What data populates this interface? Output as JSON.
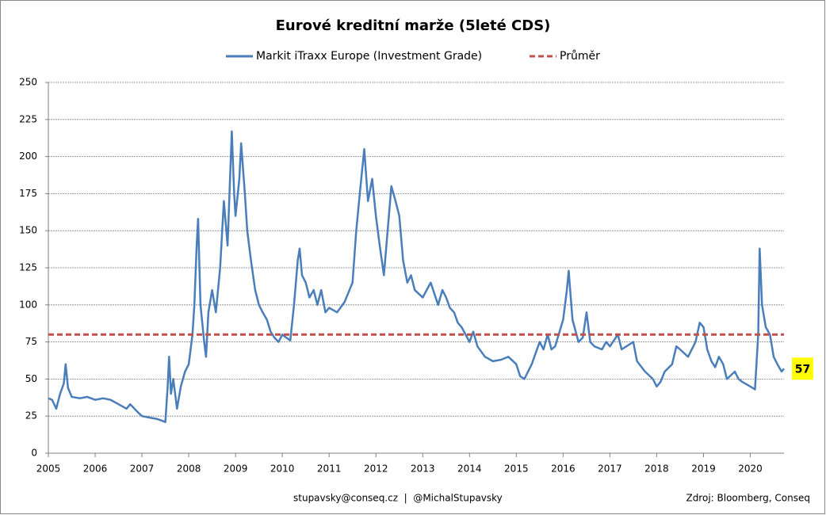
{
  "chart_data": {
    "type": "line",
    "title": "Eurové kreditní marže (5leté CDS)",
    "xlim": [
      2005,
      2020.72
    ],
    "xticks": [
      2005,
      2006,
      2007,
      2008,
      2009,
      2010,
      2011,
      2012,
      2013,
      2014,
      2015,
      2016,
      2017,
      2018,
      2019,
      2020
    ],
    "ylim": [
      0,
      250
    ],
    "yticks": [
      0,
      25,
      50,
      75,
      100,
      125,
      150,
      175,
      200,
      225,
      250
    ],
    "grid": true,
    "legend": "top",
    "series": [
      {
        "name": "Markit iTraxx Europe (Investment Grade)",
        "color": "#4a7ebb",
        "x": [
          2005.0,
          2005.08,
          2005.17,
          2005.25,
          2005.33,
          2005.37,
          2005.42,
          2005.5,
          2005.67,
          2005.83,
          2006.0,
          2006.17,
          2006.33,
          2006.5,
          2006.67,
          2006.75,
          2006.9,
          2007.0,
          2007.17,
          2007.33,
          2007.42,
          2007.5,
          2007.55,
          2007.58,
          2007.62,
          2007.67,
          2007.75,
          2007.83,
          2007.92,
          2008.0,
          2008.08,
          2008.12,
          2008.17,
          2008.2,
          2008.25,
          2008.33,
          2008.37,
          2008.42,
          2008.5,
          2008.58,
          2008.67,
          2008.75,
          2008.83,
          2008.92,
          2008.97,
          2009.0,
          2009.08,
          2009.12,
          2009.2,
          2009.25,
          2009.33,
          2009.42,
          2009.5,
          2009.58,
          2009.67,
          2009.75,
          2009.83,
          2009.92,
          2010.0,
          2010.08,
          2010.17,
          2010.25,
          2010.33,
          2010.37,
          2010.42,
          2010.5,
          2010.58,
          2010.67,
          2010.75,
          2010.83,
          2010.92,
          2011.0,
          2011.17,
          2011.33,
          2011.5,
          2011.58,
          2011.67,
          2011.75,
          2011.83,
          2011.92,
          2012.0,
          2012.08,
          2012.17,
          2012.25,
          2012.33,
          2012.42,
          2012.5,
          2012.58,
          2012.67,
          2012.75,
          2012.83,
          2013.0,
          2013.17,
          2013.33,
          2013.42,
          2013.5,
          2013.58,
          2013.67,
          2013.75,
          2013.83,
          2014.0,
          2014.08,
          2014.17,
          2014.33,
          2014.5,
          2014.67,
          2014.83,
          2015.0,
          2015.08,
          2015.17,
          2015.33,
          2015.42,
          2015.5,
          2015.58,
          2015.67,
          2015.75,
          2015.83,
          2016.0,
          2016.08,
          2016.12,
          2016.2,
          2016.33,
          2016.42,
          2016.5,
          2016.58,
          2016.67,
          2016.83,
          2016.92,
          2017.0,
          2017.17,
          2017.25,
          2017.5,
          2017.58,
          2017.75,
          2017.92,
          2018.0,
          2018.08,
          2018.17,
          2018.33,
          2018.42,
          2018.5,
          2018.67,
          2018.83,
          2018.92,
          2019.0,
          2019.08,
          2019.17,
          2019.25,
          2019.33,
          2019.42,
          2019.5,
          2019.67,
          2019.75,
          2019.83,
          2020.0,
          2020.1,
          2020.17,
          2020.2,
          2020.25,
          2020.33,
          2020.42,
          2020.5,
          2020.58,
          2020.67,
          2020.72
        ],
        "values": [
          37,
          36,
          30,
          40,
          47,
          60,
          44,
          38,
          37,
          38,
          36,
          37,
          36,
          33,
          30,
          33,
          28,
          25,
          24,
          23,
          22,
          21,
          45,
          65,
          40,
          50,
          30,
          45,
          55,
          60,
          80,
          100,
          140,
          158,
          100,
          75,
          65,
          95,
          110,
          95,
          125,
          170,
          140,
          217,
          175,
          160,
          185,
          209,
          175,
          150,
          130,
          110,
          100,
          95,
          90,
          82,
          78,
          75,
          80,
          78,
          76,
          100,
          130,
          138,
          120,
          115,
          105,
          110,
          100,
          110,
          95,
          98,
          95,
          102,
          115,
          150,
          180,
          205,
          170,
          185,
          160,
          140,
          120,
          150,
          180,
          170,
          160,
          130,
          115,
          120,
          110,
          105,
          115,
          100,
          110,
          105,
          98,
          95,
          88,
          85,
          75,
          82,
          72,
          65,
          62,
          63,
          65,
          60,
          52,
          50,
          60,
          68,
          75,
          70,
          80,
          70,
          72,
          90,
          110,
          123,
          90,
          75,
          78,
          95,
          75,
          72,
          70,
          75,
          72,
          80,
          70,
          75,
          62,
          55,
          50,
          45,
          48,
          55,
          60,
          72,
          70,
          65,
          75,
          88,
          85,
          70,
          62,
          58,
          65,
          60,
          50,
          55,
          50,
          48,
          45,
          43,
          80,
          138,
          100,
          85,
          80,
          65,
          60,
          55,
          57
        ]
      },
      {
        "name": "Průměr",
        "color": "#c0504d",
        "dashed": true,
        "x": [
          2005,
          2020.72
        ],
        "values": [
          80,
          80
        ]
      }
    ],
    "footer_left": "stupavsky@conseq.cz  |  @MichalStupavsky",
    "footer_right": "Zdroj: Bloomberg, Conseq"
  }
}
